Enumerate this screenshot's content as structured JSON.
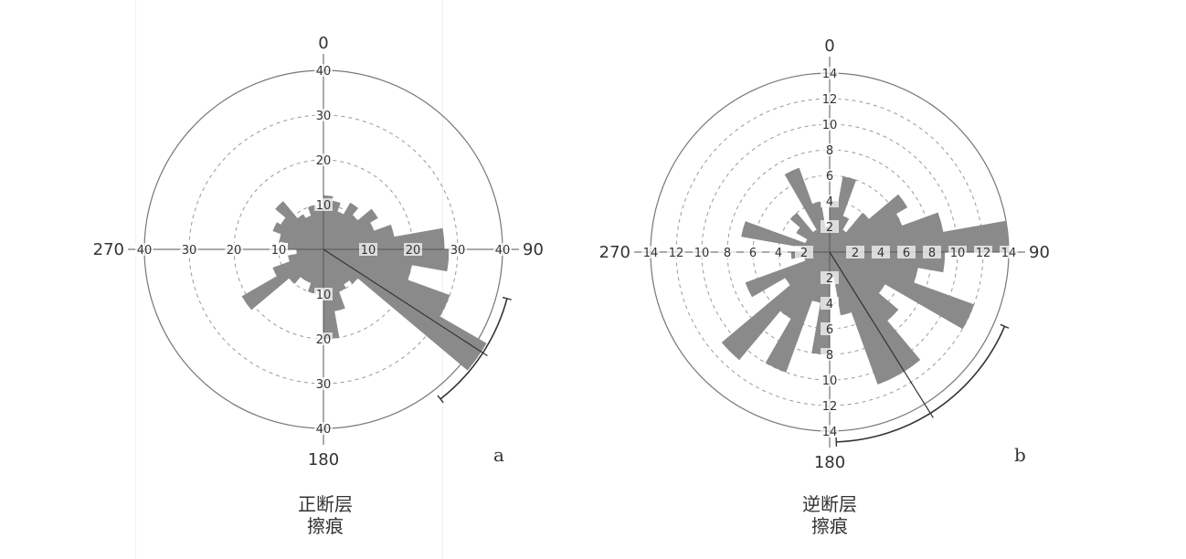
{
  "chart_data": [
    {
      "type": "rose",
      "panel_label": "a",
      "caption": [
        "正断层",
        "擦痕"
      ],
      "compass_labels": {
        "north": "0",
        "east": "90",
        "south": "180",
        "west": "270"
      },
      "radial_ticks": [
        10,
        20,
        30,
        40
      ],
      "radial_max": 40,
      "radial_tick_labels": [
        "10",
        "20",
        "30",
        "40"
      ],
      "bin_width_deg": 10,
      "color": "#8a8a8a",
      "bins": [
        {
          "angle": 5,
          "value": 12
        },
        {
          "angle": 15,
          "value": 11
        },
        {
          "angle": 25,
          "value": 9
        },
        {
          "angle": 35,
          "value": 12
        },
        {
          "angle": 45,
          "value": 10
        },
        {
          "angle": 55,
          "value": 14
        },
        {
          "angle": 65,
          "value": 12
        },
        {
          "angle": 75,
          "value": 16
        },
        {
          "angle": 85,
          "value": 27
        },
        {
          "angle": 95,
          "value": 28
        },
        {
          "angle": 105,
          "value": 20
        },
        {
          "angle": 115,
          "value": 30
        },
        {
          "angle": 125,
          "value": 42
        },
        {
          "angle": 135,
          "value": 10
        },
        {
          "angle": 145,
          "value": 9
        },
        {
          "angle": 155,
          "value": 10
        },
        {
          "angle": 165,
          "value": 14
        },
        {
          "angle": 175,
          "value": 20
        },
        {
          "angle": 185,
          "value": 9
        },
        {
          "angle": 195,
          "value": 10
        },
        {
          "angle": 205,
          "value": 8
        },
        {
          "angle": 215,
          "value": 8
        },
        {
          "angle": 225,
          "value": 10
        },
        {
          "angle": 235,
          "value": 21
        },
        {
          "angle": 245,
          "value": 12
        },
        {
          "angle": 255,
          "value": 8
        },
        {
          "angle": 265,
          "value": 6
        },
        {
          "angle": 275,
          "value": 8
        },
        {
          "angle": 285,
          "value": 10
        },
        {
          "angle": 295,
          "value": 12
        },
        {
          "angle": 305,
          "value": 11
        },
        {
          "angle": 315,
          "value": 14
        },
        {
          "angle": 325,
          "value": 9
        },
        {
          "angle": 335,
          "value": 8
        },
        {
          "angle": 345,
          "value": 10
        },
        {
          "angle": 355,
          "value": 9
        }
      ],
      "mean_direction_deg": 123,
      "confidence_arc_deg": [
        105,
        142
      ]
    },
    {
      "type": "rose",
      "panel_label": "b",
      "caption": [
        "逆断层",
        "擦痕"
      ],
      "compass_labels": {
        "north": "0",
        "east": "90",
        "south": "180",
        "west": "270"
      },
      "radial_ticks": [
        2,
        4,
        6,
        8,
        10,
        12,
        14
      ],
      "radial_max": 14,
      "radial_tick_labels": [
        "2",
        "4",
        "6",
        "8",
        "10",
        "12",
        "14"
      ],
      "bin_width_deg": 10,
      "color": "#8a8a8a",
      "bins": [
        {
          "angle": 5,
          "value": 4
        },
        {
          "angle": 15,
          "value": 6
        },
        {
          "angle": 25,
          "value": 3
        },
        {
          "angle": 35,
          "value": 2
        },
        {
          "angle": 45,
          "value": 4
        },
        {
          "angle": 55,
          "value": 7
        },
        {
          "angle": 65,
          "value": 6
        },
        {
          "angle": 75,
          "value": 9
        },
        {
          "angle": 85,
          "value": 14
        },
        {
          "angle": 95,
          "value": 9
        },
        {
          "angle": 105,
          "value": 7
        },
        {
          "angle": 115,
          "value": 12
        },
        {
          "angle": 125,
          "value": 5
        },
        {
          "angle": 135,
          "value": 7
        },
        {
          "angle": 145,
          "value": 11
        },
        {
          "angle": 155,
          "value": 11
        },
        {
          "angle": 165,
          "value": 5
        },
        {
          "angle": 175,
          "value": 2
        },
        {
          "angle": 185,
          "value": 8
        },
        {
          "angle": 195,
          "value": 4
        },
        {
          "angle": 205,
          "value": 10
        },
        {
          "angle": 215,
          "value": 6
        },
        {
          "angle": 225,
          "value": 11
        },
        {
          "angle": 235,
          "value": 4
        },
        {
          "angle": 245,
          "value": 7
        },
        {
          "angle": 255,
          "value": 2
        },
        {
          "angle": 265,
          "value": 3
        },
        {
          "angle": 275,
          "value": 2
        },
        {
          "angle": 285,
          "value": 7
        },
        {
          "angle": 295,
          "value": 2
        },
        {
          "angle": 305,
          "value": 3
        },
        {
          "angle": 315,
          "value": 4
        },
        {
          "angle": 325,
          "value": 2
        },
        {
          "angle": 335,
          "value": 7
        },
        {
          "angle": 345,
          "value": 4
        },
        {
          "angle": 355,
          "value": 2
        }
      ],
      "mean_direction_deg": 148,
      "confidence_arc_deg": [
        113,
        178
      ]
    }
  ]
}
